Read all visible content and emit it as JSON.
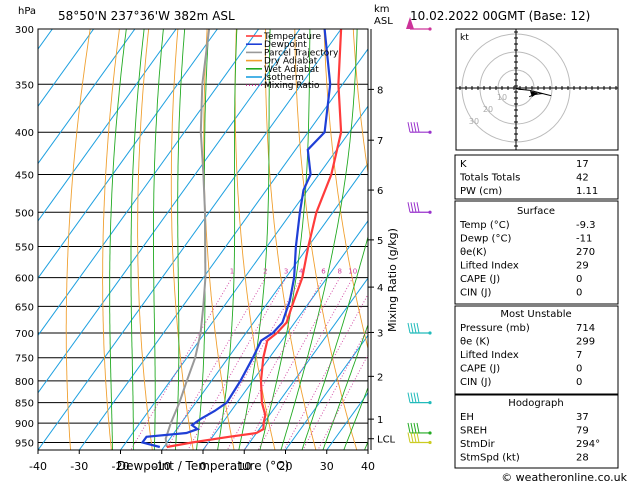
{
  "header": {
    "hpa_label": "hPa",
    "location": "58°50'N  237°36'W  382m  ASL",
    "km_label": "km",
    "asl_label": "ASL",
    "date": "10.02.2022  00GMT  (Base: 12)"
  },
  "axes": {
    "xlabel": "Dewpoint / Temperature (°C)",
    "ylabel_right": "Mixing Ratio (g/kg)",
    "x_ticks": [
      -40,
      -30,
      -20,
      -10,
      0,
      10,
      20,
      30,
      40
    ],
    "pressure_ticks": [
      300,
      350,
      400,
      450,
      500,
      550,
      600,
      650,
      700,
      750,
      800,
      850,
      900,
      950
    ],
    "km_ticks": [
      {
        "km": "8",
        "p": 355
      },
      {
        "km": "7",
        "p": 409
      },
      {
        "km": "6",
        "p": 470
      },
      {
        "km": "5",
        "p": 540
      },
      {
        "km": "4",
        "p": 616
      },
      {
        "km": "3",
        "p": 699
      },
      {
        "km": "2",
        "p": 790
      },
      {
        "km": "1",
        "p": 890
      },
      {
        "km": "LCL",
        "p": 940
      }
    ],
    "mixing_ratio_labels": [
      "1",
      "2",
      "3",
      "4",
      "6",
      "8",
      "10",
      "15",
      "20",
      "25"
    ]
  },
  "legend": {
    "items": [
      {
        "label": "Temperature",
        "color": "#ff3b3b",
        "style": "solid"
      },
      {
        "label": "Dewpoint",
        "color": "#1f3fd6",
        "style": "solid"
      },
      {
        "label": "Parcel Trajectory",
        "color": "#999999",
        "style": "solid"
      },
      {
        "label": "Dry Adiabat",
        "color": "#f0a030",
        "style": "solid"
      },
      {
        "label": "Wet Adiabat",
        "color": "#22aa22",
        "style": "solid"
      },
      {
        "label": "Isotherm",
        "color": "#1ea0e0",
        "style": "solid"
      },
      {
        "label": "Mixing Ratio",
        "color": "#d040a0",
        "style": "dotted"
      }
    ]
  },
  "chart_data": {
    "type": "line",
    "title": "58°50'N  237°36'W  382m  ASL",
    "xlabel": "Dewpoint / Temperature (°C)",
    "ylabel": "hPa",
    "xlim": [
      -40,
      40
    ],
    "ylim_hpa": [
      300,
      970
    ],
    "series": [
      {
        "name": "Temperature",
        "color": "#ff3b3b",
        "points": [
          [
            962,
            -9.3
          ],
          [
            950,
            -4
          ],
          [
            935,
            4
          ],
          [
            925,
            10
          ],
          [
            915,
            11
          ],
          [
            900,
            10
          ],
          [
            880,
            9
          ],
          [
            850,
            6
          ],
          [
            800,
            2
          ],
          [
            750,
            -1.5
          ],
          [
            715,
            -3.5
          ],
          [
            700,
            -2.5
          ],
          [
            680,
            -2
          ],
          [
            660,
            -3
          ],
          [
            640,
            -4
          ],
          [
            600,
            -6
          ],
          [
            550,
            -10
          ],
          [
            500,
            -14
          ],
          [
            450,
            -17
          ],
          [
            400,
            -22
          ],
          [
            350,
            -31
          ],
          [
            300,
            -40
          ]
        ]
      },
      {
        "name": "Dewpoint",
        "color": "#1f3fd6",
        "points": [
          [
            962,
            -11
          ],
          [
            950,
            -16
          ],
          [
            935,
            -16
          ],
          [
            925,
            -7
          ],
          [
            915,
            -5
          ],
          [
            905,
            -7
          ],
          [
            890,
            -6
          ],
          [
            870,
            -4
          ],
          [
            850,
            -2.5
          ],
          [
            800,
            -3
          ],
          [
            750,
            -4
          ],
          [
            715,
            -5
          ],
          [
            700,
            -3.5
          ],
          [
            680,
            -3
          ],
          [
            660,
            -4
          ],
          [
            640,
            -5
          ],
          [
            600,
            -8
          ],
          [
            550,
            -13
          ],
          [
            500,
            -18
          ],
          [
            470,
            -21
          ],
          [
            450,
            -22
          ],
          [
            420,
            -27
          ],
          [
            400,
            -26
          ],
          [
            350,
            -33
          ],
          [
            300,
            -44
          ]
        ]
      },
      {
        "name": "Parcel Trajectory",
        "color": "#999999",
        "points": [
          [
            962,
            -9.3
          ],
          [
            940,
            -11
          ],
          [
            900,
            -12.5
          ],
          [
            850,
            -14
          ],
          [
            800,
            -16
          ],
          [
            750,
            -18
          ],
          [
            700,
            -21
          ],
          [
            650,
            -25
          ],
          [
            600,
            -29.5
          ],
          [
            550,
            -35
          ],
          [
            500,
            -41
          ],
          [
            450,
            -48
          ],
          [
            400,
            -56
          ],
          [
            350,
            -64
          ],
          [
            300,
            -72
          ]
        ]
      }
    ],
    "wind_barbs": [
      {
        "p": 300,
        "color": "#cc3399",
        "type": "pennant"
      },
      {
        "p": 400,
        "color": "#9933cc",
        "type": "barbs"
      },
      {
        "p": 500,
        "color": "#9933cc",
        "type": "barbs"
      },
      {
        "p": 700,
        "color": "#22bbbb",
        "type": "barbs"
      },
      {
        "p": 850,
        "color": "#22bbbb",
        "type": "barbs"
      },
      {
        "p": 925,
        "color": "#22aa22",
        "type": "barbs"
      },
      {
        "p": 950,
        "color": "#cccc22",
        "type": "barbs"
      }
    ]
  },
  "hodograph": {
    "label": "kt",
    "ring_labels": [
      "10",
      "20",
      "30"
    ],
    "trace": [
      [
        0,
        0
      ],
      [
        1,
        -0.5
      ],
      [
        6,
        -1
      ],
      [
        10,
        -2
      ],
      [
        14,
        -3
      ],
      [
        16,
        -3.5
      ],
      [
        12,
        -2.5
      ],
      [
        8,
        -3
      ],
      [
        6,
        -4
      ]
    ]
  },
  "stability": {
    "rows": [
      {
        "label": "K",
        "value": "17"
      },
      {
        "label": "Totals Totals",
        "value": "42"
      },
      {
        "label": "PW (cm)",
        "value": "1.11"
      }
    ]
  },
  "surface": {
    "title": "Surface",
    "rows": [
      {
        "label": "Temp (°C)",
        "value": "-9.3"
      },
      {
        "label": "Dewp (°C)",
        "value": "-11"
      },
      {
        "label": "θe(K)",
        "value": "270"
      },
      {
        "label": "Lifted Index",
        "value": "29"
      },
      {
        "label": "CAPE (J)",
        "value": "0"
      },
      {
        "label": "CIN (J)",
        "value": "0"
      }
    ]
  },
  "most_unstable": {
    "title": "Most Unstable",
    "rows": [
      {
        "label": "Pressure (mb)",
        "value": "714"
      },
      {
        "label": "θe (K)",
        "value": "299"
      },
      {
        "label": "Lifted Index",
        "value": "7"
      },
      {
        "label": "CAPE (J)",
        "value": "0"
      },
      {
        "label": "CIN (J)",
        "value": "0"
      }
    ]
  },
  "hodograph_table": {
    "title": "Hodograph",
    "rows": [
      {
        "label": "EH",
        "value": "37"
      },
      {
        "label": "SREH",
        "value": "79"
      },
      {
        "label": "StmDir",
        "value": "294°"
      },
      {
        "label": "StmSpd (kt)",
        "value": "28"
      }
    ]
  },
  "footer": {
    "copyright": "© weatheronline.co.uk"
  }
}
